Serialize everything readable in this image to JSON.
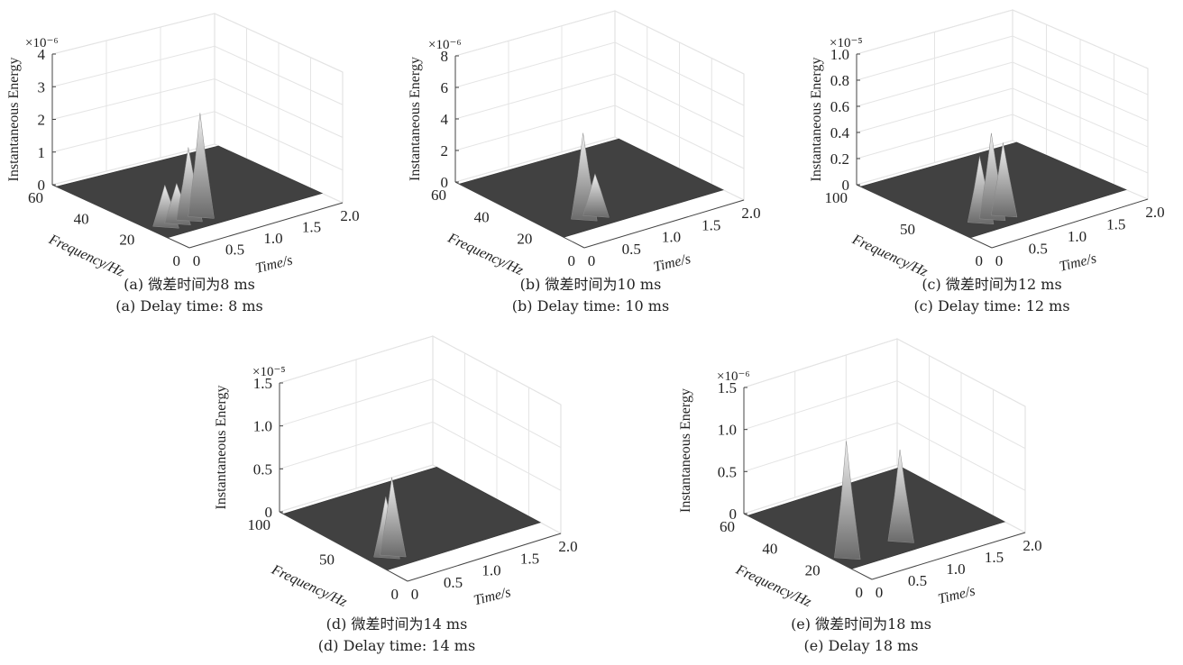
{
  "chart_data": [
    {
      "type": "surface3d",
      "energy_multiplier": "×10⁻⁶",
      "ylabel": "Instantaneous Energy",
      "xlabel": "Time/s",
      "freq_label": "Frequency/Hz",
      "zlim": [
        0,
        4
      ],
      "z_ticks": [
        "0",
        "1",
        "2",
        "3",
        "4"
      ],
      "freq_ticks": [
        "0",
        "20",
        "40",
        "60"
      ],
      "time_ticks": [
        "0",
        "0.5",
        "1.0",
        "1.5",
        "2.0"
      ],
      "caption_cn": "(a) 微差时间为8 ms",
      "caption_en": "(a) Delay time: 8 ms",
      "peaks": [
        {
          "time": 0.3,
          "energy": 1.05
        },
        {
          "time": 0.45,
          "energy": 1.0
        },
        {
          "time": 0.6,
          "energy": 2.0
        },
        {
          "time": 0.75,
          "energy": 2.95
        }
      ]
    },
    {
      "type": "surface3d",
      "energy_multiplier": "×10⁻⁶",
      "ylabel": "Instantaneous Energy",
      "xlabel": "Time/s",
      "freq_label": "Frequency/Hz",
      "zlim": [
        0,
        8
      ],
      "z_ticks": [
        "0",
        "2",
        "4",
        "6",
        "8"
      ],
      "freq_ticks": [
        "0",
        "20",
        "40",
        "60"
      ],
      "time_ticks": [
        "0",
        "0.5",
        "1.0",
        "1.5",
        "2.0"
      ],
      "caption_cn": "(b) 微差时间为10 ms",
      "caption_en": "(b) Delay time: 10 ms",
      "peaks": [
        {
          "time": 0.55,
          "energy": 5.0
        },
        {
          "time": 0.7,
          "energy": 2.2
        }
      ]
    },
    {
      "type": "surface3d",
      "energy_multiplier": "×10⁻⁵",
      "ylabel": "Instantaneous Energy",
      "xlabel": "Time/s",
      "freq_label": "Frequency/Hz",
      "zlim": [
        0,
        1.0
      ],
      "z_ticks": [
        "0",
        "0.2",
        "0.4",
        "0.6",
        "0.8",
        "1.0"
      ],
      "freq_ticks": [
        "0",
        "50",
        "100"
      ],
      "time_ticks": [
        "0",
        "0.5",
        "1.0",
        "1.5",
        "2.0"
      ],
      "caption_cn": "(c) 微差时间为12 ms",
      "caption_en": "(c) Delay time: 12 ms",
      "peaks": [
        {
          "time": 0.45,
          "energy": 0.45
        },
        {
          "time": 0.6,
          "energy": 0.6
        },
        {
          "time": 0.75,
          "energy": 0.5
        }
      ]
    },
    {
      "type": "surface3d",
      "energy_multiplier": "×10⁻⁵",
      "ylabel": "Instantaneous Energy",
      "xlabel": "Time/s",
      "freq_label": "Frequency/Hz",
      "zlim": [
        0,
        1.5
      ],
      "z_ticks": [
        "0",
        "0.5",
        "1.0",
        "1.5"
      ],
      "freq_ticks": [
        "0",
        "50",
        "100"
      ],
      "time_ticks": [
        "0",
        "0.5",
        "1.0",
        "1.5",
        "2.0"
      ],
      "caption_cn": "(d) 微差时间为14 ms",
      "caption_en": "(d) Delay time: 14 ms",
      "peaks": [
        {
          "time": 0.3,
          "energy": 0.62
        },
        {
          "time": 0.38,
          "energy": 0.82
        }
      ]
    },
    {
      "type": "surface3d",
      "energy_multiplier": "×10⁻⁶",
      "ylabel": "Instantaneous Energy",
      "xlabel": "Time/s",
      "freq_label": "Frequency/Hz",
      "zlim": [
        0,
        1.5
      ],
      "z_ticks": [
        "0",
        "0.5",
        "1.0",
        "1.5"
      ],
      "freq_ticks": [
        "0",
        "20",
        "40",
        "60"
      ],
      "time_ticks": [
        "0",
        "0.5",
        "1.0",
        "1.5",
        "2.0"
      ],
      "caption_cn": "(e) 微差时间为18 ms",
      "caption_en": "(e) Delay 18 ms",
      "peaks": [
        {
          "time": 0.25,
          "energy": 1.3
        },
        {
          "time": 0.95,
          "energy": 1.0
        }
      ]
    }
  ]
}
